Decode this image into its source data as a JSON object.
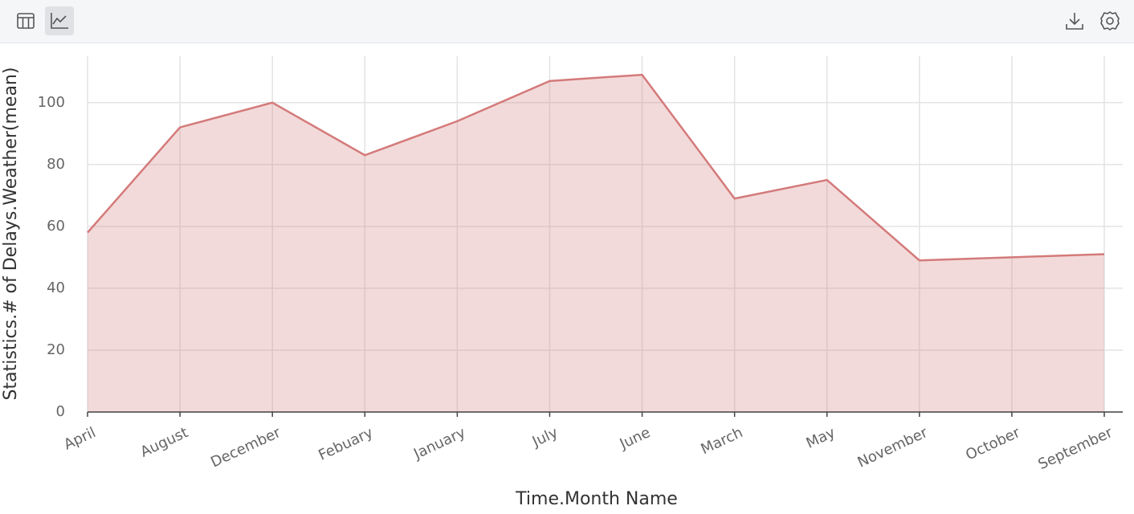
{
  "chart_data": {
    "type": "area",
    "x_label": "Time.Month Name",
    "y_label": "Statistics.# of Delays.Weather(mean)",
    "categories": [
      "April",
      "August",
      "December",
      "Febuary",
      "January",
      "July",
      "June",
      "March",
      "May",
      "November",
      "October",
      "September"
    ],
    "values": [
      58,
      92,
      100,
      83,
      94,
      107,
      109,
      69,
      75,
      49,
      50,
      51
    ],
    "color": "#d47a7a",
    "ylim": [
      0,
      115
    ],
    "yticks": [
      0,
      20,
      40,
      60,
      80,
      100
    ],
    "grid": true
  }
}
